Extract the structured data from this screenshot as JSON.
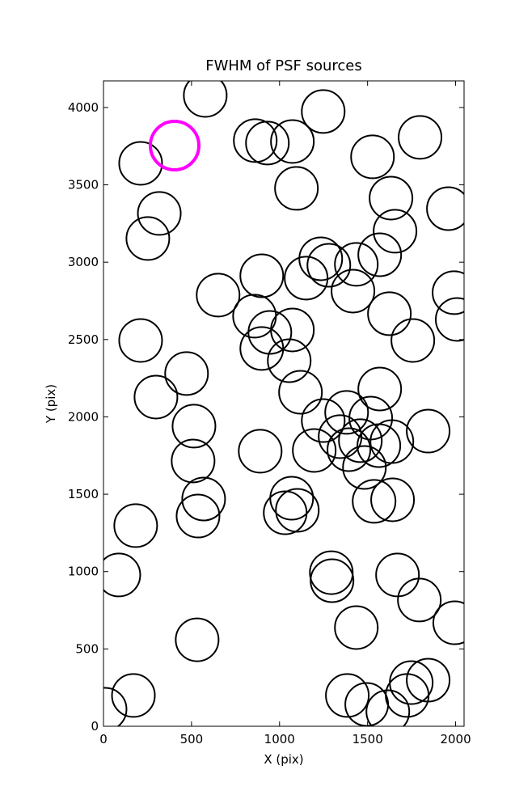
{
  "chart_data": {
    "type": "scatter",
    "title": "FWHM of PSF sources",
    "x_label": "X (pix)",
    "y_label": "Y (pix)",
    "xlim": [
      0,
      2048
    ],
    "ylim": [
      0,
      4172
    ],
    "xticks": [
      0,
      500,
      1000,
      1500,
      2000
    ],
    "yticks": [
      0,
      500,
      1000,
      1500,
      2000,
      2500,
      3000,
      3500,
      4000
    ],
    "series": [
      {
        "color": "#000000",
        "x": [
          578,
          211,
          862,
          931,
          1073,
          1248,
          1798,
          1528,
          1096,
          1633,
          1959,
          317,
          252,
          1656,
          1569,
          1234,
          1280,
          1436,
          899,
          1151,
          1417,
          651,
          1991,
          2009,
          1624,
          858,
          945,
          1073,
          1757,
          211,
          899,
          1055,
          472,
          1119,
          1569,
          298,
          1248,
          1381,
          1518,
          1844,
          514,
          1344,
          1459,
          1564,
          1638,
          1197,
          1394,
          890,
          1482,
          509,
          569,
          537,
          1069,
          1101,
          1032,
          1537,
          1642,
          183,
          87,
          1294,
          1298,
          1670,
          1794,
          1995,
          1436,
          532,
          1844,
          1748,
          1385,
          1495,
          1725,
          1615,
          170,
          9
        ],
        "values": [
          4078,
          3639,
          3786,
          3770,
          3780,
          3974,
          3807,
          3681,
          3477,
          3414,
          3346,
          3315,
          3153,
          3200,
          3048,
          3022,
          2980,
          2986,
          2912,
          2897,
          2813,
          2787,
          2803,
          2630,
          2667,
          2651,
          2546,
          2562,
          2494,
          2494,
          2442,
          2363,
          2280,
          2159,
          2180,
          2128,
          1976,
          2029,
          1992,
          1908,
          1940,
          1872,
          1846,
          1814,
          1840,
          1783,
          1788,
          1778,
          1673,
          1715,
          1469,
          1359,
          1474,
          1396,
          1380,
          1454,
          1464,
          1297,
          978,
          993,
          941,
          978,
          816,
          669,
          638,
          559,
          298,
          282,
          199,
          141,
          199,
          94,
          199,
          110
        ]
      },
      {
        "color": "#ff00ff",
        "x": [
          404
        ],
        "values": [
          3754
        ]
      }
    ]
  }
}
